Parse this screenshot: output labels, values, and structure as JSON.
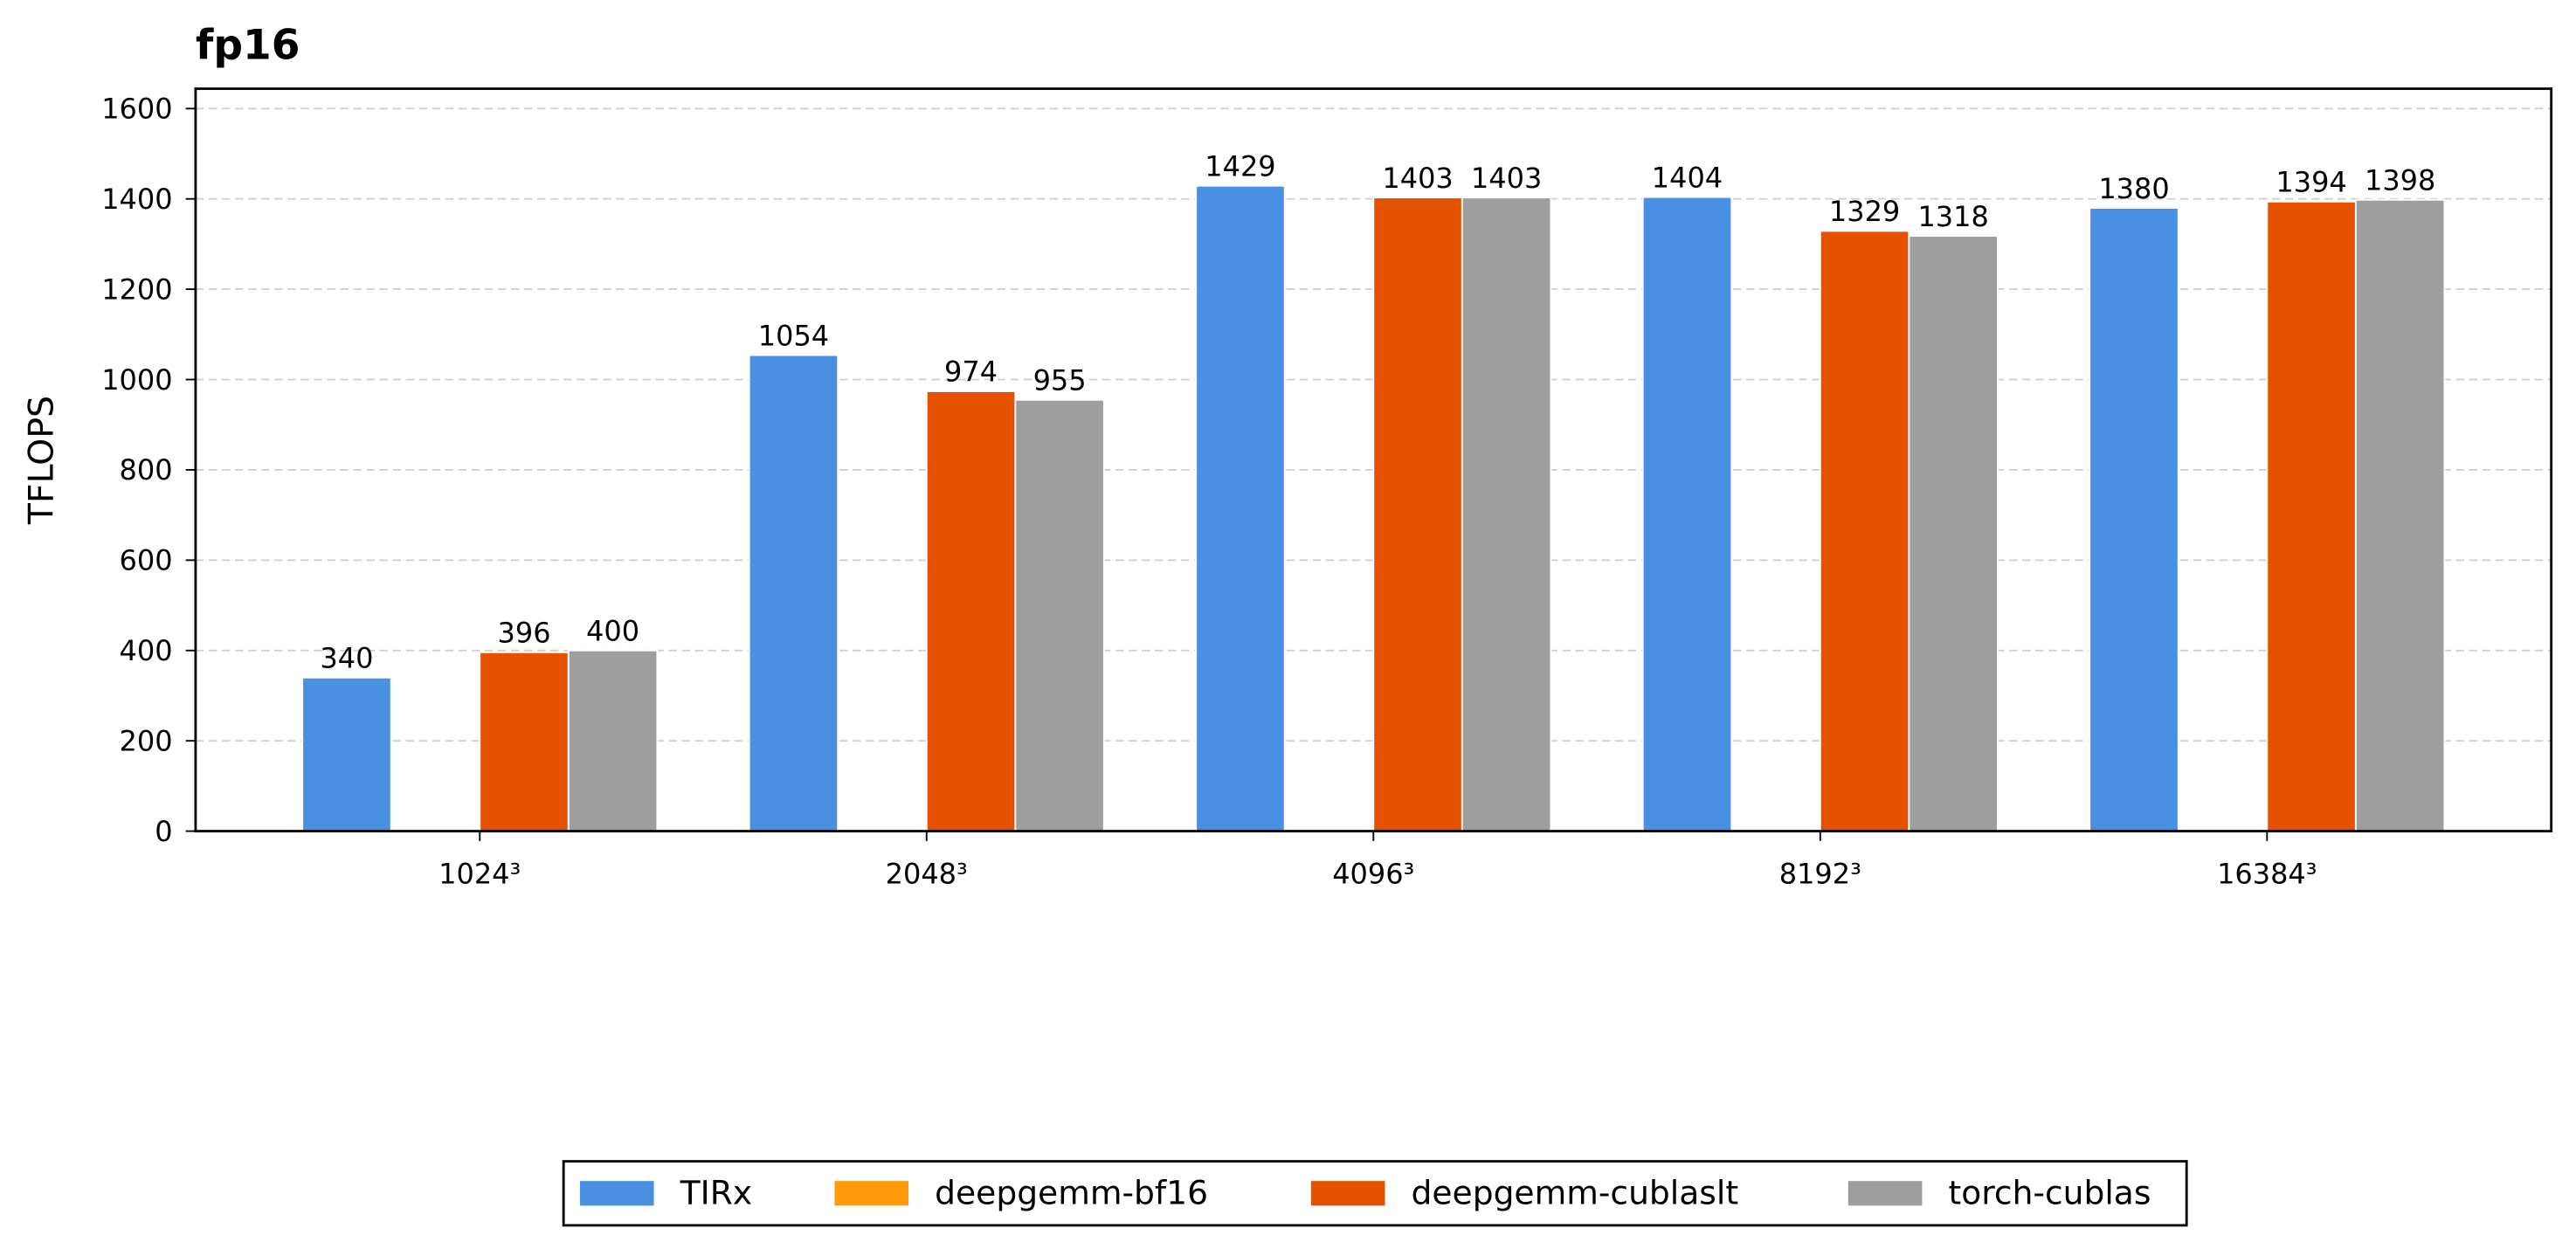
{
  "chart_data": {
    "type": "bar",
    "title": "fp16",
    "y_label": "TFLOPS",
    "categories": [
      "1024³",
      "2048³",
      "4096³",
      "8192³",
      "16384³"
    ],
    "series": [
      {
        "name": "TIRx",
        "color": "#4a90e2",
        "values": [
          340,
          1054,
          1429,
          1404,
          1380
        ]
      },
      {
        "name": "deepgemm-bf16",
        "color": "#ff9a0a",
        "values": [
          null,
          null,
          null,
          null,
          null
        ]
      },
      {
        "name": "deepgemm-cublaslt",
        "color": "#e65100",
        "values": [
          396,
          974,
          1403,
          1329,
          1394
        ]
      },
      {
        "name": "torch-cublas",
        "color": "#9e9e9e",
        "values": [
          400,
          955,
          1403,
          1318,
          1398
        ]
      }
    ],
    "ylim": [
      0,
      1644
    ],
    "yticks": [
      0,
      200,
      400,
      600,
      800,
      1000,
      1200,
      1400,
      1600
    ],
    "grid": true,
    "legend": "bottom"
  }
}
